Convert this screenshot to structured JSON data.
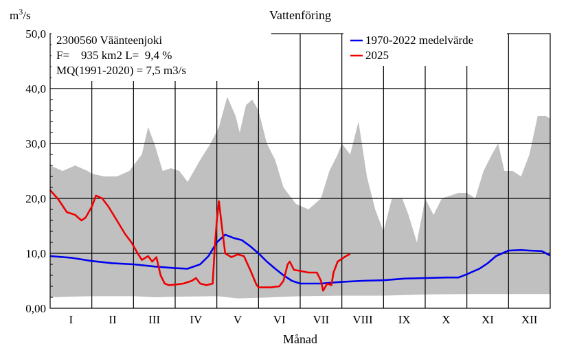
{
  "chart_data": {
    "type": "line",
    "title": "Vattenföring",
    "ylabel_base": "m",
    "ylabel_sup": "3",
    "ylabel_rest": "/s",
    "xlabel": "Månad",
    "ylim": [
      0,
      50
    ],
    "xlim": [
      0,
      12
    ],
    "yticks": [
      {
        "value": 0,
        "label": "0,00"
      },
      {
        "value": 10,
        "label": "10,0"
      },
      {
        "value": 20,
        "label": "20,0"
      },
      {
        "value": 30,
        "label": "30,0"
      },
      {
        "value": 40,
        "label": "40,0"
      },
      {
        "value": 50,
        "label": "50,0"
      }
    ],
    "months": [
      "I",
      "II",
      "III",
      "IV",
      "V",
      "VI",
      "VII",
      "VIII",
      "IX",
      "X",
      "XI",
      "XII"
    ],
    "grid": true,
    "legend_position": "top-right",
    "info_lines": [
      "2300560 Väänteenjoki",
      "F=    935 km2 L=  9,4 %",
      "MQ(1991-2020) = 7,5 m3/s"
    ],
    "envelope": {
      "color": "#c0c0c0",
      "max": [
        [
          0,
          26
        ],
        [
          0.3,
          25
        ],
        [
          0.6,
          26
        ],
        [
          0.9,
          25
        ],
        [
          1.0,
          24.5
        ],
        [
          1.3,
          24
        ],
        [
          1.6,
          24
        ],
        [
          1.9,
          25
        ],
        [
          2.0,
          26
        ],
        [
          2.2,
          28
        ],
        [
          2.35,
          33
        ],
        [
          2.5,
          30
        ],
        [
          2.7,
          25
        ],
        [
          2.9,
          25.5
        ],
        [
          3.1,
          25
        ],
        [
          3.3,
          23
        ],
        [
          3.6,
          27
        ],
        [
          3.85,
          30
        ],
        [
          4.05,
          33
        ],
        [
          4.25,
          38.5
        ],
        [
          4.45,
          35
        ],
        [
          4.55,
          32
        ],
        [
          4.7,
          37
        ],
        [
          4.85,
          38
        ],
        [
          5.0,
          36
        ],
        [
          5.2,
          30
        ],
        [
          5.4,
          27
        ],
        [
          5.6,
          22
        ],
        [
          5.9,
          19
        ],
        [
          6.2,
          18
        ],
        [
          6.5,
          20
        ],
        [
          6.7,
          25
        ],
        [
          6.9,
          28
        ],
        [
          7.0,
          30
        ],
        [
          7.2,
          28
        ],
        [
          7.4,
          34
        ],
        [
          7.6,
          24
        ],
        [
          7.8,
          18
        ],
        [
          8.0,
          14
        ],
        [
          8.2,
          20
        ],
        [
          8.45,
          20
        ],
        [
          8.6,
          17
        ],
        [
          8.8,
          12
        ],
        [
          9.0,
          20
        ],
        [
          9.2,
          17
        ],
        [
          9.4,
          20
        ],
        [
          9.6,
          20.5
        ],
        [
          9.8,
          21
        ],
        [
          10.0,
          21
        ],
        [
          10.2,
          20
        ],
        [
          10.4,
          25
        ],
        [
          10.6,
          28
        ],
        [
          10.75,
          30
        ],
        [
          10.9,
          25
        ],
        [
          11.1,
          25
        ],
        [
          11.3,
          24
        ],
        [
          11.5,
          28
        ],
        [
          11.7,
          35
        ],
        [
          11.9,
          35
        ],
        [
          12.0,
          34.5
        ]
      ],
      "min": [
        [
          0,
          2
        ],
        [
          1,
          2.2
        ],
        [
          2,
          2.2
        ],
        [
          2.5,
          2
        ],
        [
          3,
          2.1
        ],
        [
          4,
          2.2
        ],
        [
          4.5,
          1.8
        ],
        [
          5,
          1.9
        ],
        [
          6,
          2.2
        ],
        [
          7,
          2.3
        ],
        [
          8,
          2.3
        ],
        [
          9,
          2.5
        ],
        [
          10,
          2.6
        ],
        [
          11,
          2.6
        ],
        [
          12,
          2.6
        ]
      ]
    },
    "series": [
      {
        "name": "1970-2022 medelvärde",
        "color": "#0000ee",
        "points": [
          [
            0,
            9.5
          ],
          [
            0.5,
            9.2
          ],
          [
            1.0,
            8.6
          ],
          [
            1.5,
            8.2
          ],
          [
            2.0,
            8.0
          ],
          [
            2.5,
            7.6
          ],
          [
            3.0,
            7.3
          ],
          [
            3.3,
            7.2
          ],
          [
            3.6,
            8.0
          ],
          [
            3.8,
            9.5
          ],
          [
            4.0,
            12.0
          ],
          [
            4.2,
            13.4
          ],
          [
            4.4,
            12.8
          ],
          [
            4.6,
            12.4
          ],
          [
            4.8,
            11.3
          ],
          [
            5.0,
            10.0
          ],
          [
            5.2,
            8.5
          ],
          [
            5.4,
            7.2
          ],
          [
            5.6,
            6.0
          ],
          [
            5.8,
            5.0
          ],
          [
            6.0,
            4.5
          ],
          [
            6.5,
            4.5
          ],
          [
            7.0,
            4.8
          ],
          [
            7.5,
            5.0
          ],
          [
            8.0,
            5.1
          ],
          [
            8.5,
            5.4
          ],
          [
            9.0,
            5.5
          ],
          [
            9.5,
            5.6
          ],
          [
            9.8,
            5.6
          ],
          [
            10.0,
            6.2
          ],
          [
            10.3,
            7.2
          ],
          [
            10.5,
            8.2
          ],
          [
            10.7,
            9.5
          ],
          [
            11.0,
            10.5
          ],
          [
            11.3,
            10.6
          ],
          [
            11.5,
            10.5
          ],
          [
            11.8,
            10.4
          ],
          [
            12.0,
            9.6
          ]
        ]
      },
      {
        "name": "2025",
        "color": "#ee0000",
        "points": [
          [
            0,
            21.5
          ],
          [
            0.2,
            19.8
          ],
          [
            0.4,
            17.5
          ],
          [
            0.6,
            17.0
          ],
          [
            0.75,
            16.0
          ],
          [
            0.85,
            16.5
          ],
          [
            1.0,
            18.5
          ],
          [
            1.1,
            20.5
          ],
          [
            1.25,
            20.0
          ],
          [
            1.4,
            18.5
          ],
          [
            1.6,
            16.0
          ],
          [
            1.8,
            13.5
          ],
          [
            1.95,
            12.0
          ],
          [
            2.1,
            10.0
          ],
          [
            2.2,
            8.8
          ],
          [
            2.35,
            9.5
          ],
          [
            2.45,
            8.5
          ],
          [
            2.55,
            9.3
          ],
          [
            2.65,
            6.0
          ],
          [
            2.75,
            4.5
          ],
          [
            2.85,
            4.2
          ],
          [
            3.0,
            4.3
          ],
          [
            3.2,
            4.5
          ],
          [
            3.4,
            5.0
          ],
          [
            3.5,
            5.5
          ],
          [
            3.6,
            4.5
          ],
          [
            3.75,
            4.2
          ],
          [
            3.9,
            4.5
          ],
          [
            3.95,
            11.0
          ],
          [
            4.0,
            16.0
          ],
          [
            4.05,
            19.5
          ],
          [
            4.12,
            15.0
          ],
          [
            4.2,
            10.0
          ],
          [
            4.35,
            9.3
          ],
          [
            4.5,
            9.8
          ],
          [
            4.65,
            9.5
          ],
          [
            4.8,
            7.0
          ],
          [
            4.95,
            4.3
          ],
          [
            5.0,
            3.8
          ],
          [
            5.3,
            3.8
          ],
          [
            5.5,
            4.0
          ],
          [
            5.6,
            5.0
          ],
          [
            5.7,
            8.0
          ],
          [
            5.75,
            8.5
          ],
          [
            5.85,
            7.0
          ],
          [
            6.0,
            6.8
          ],
          [
            6.2,
            6.5
          ],
          [
            6.4,
            6.5
          ],
          [
            6.5,
            5.0
          ],
          [
            6.55,
            3.2
          ],
          [
            6.65,
            4.5
          ],
          [
            6.75,
            4.2
          ],
          [
            6.8,
            6.5
          ],
          [
            6.9,
            8.5
          ],
          [
            7.0,
            9.0
          ],
          [
            7.1,
            9.5
          ],
          [
            7.2,
            9.9
          ]
        ]
      }
    ]
  }
}
